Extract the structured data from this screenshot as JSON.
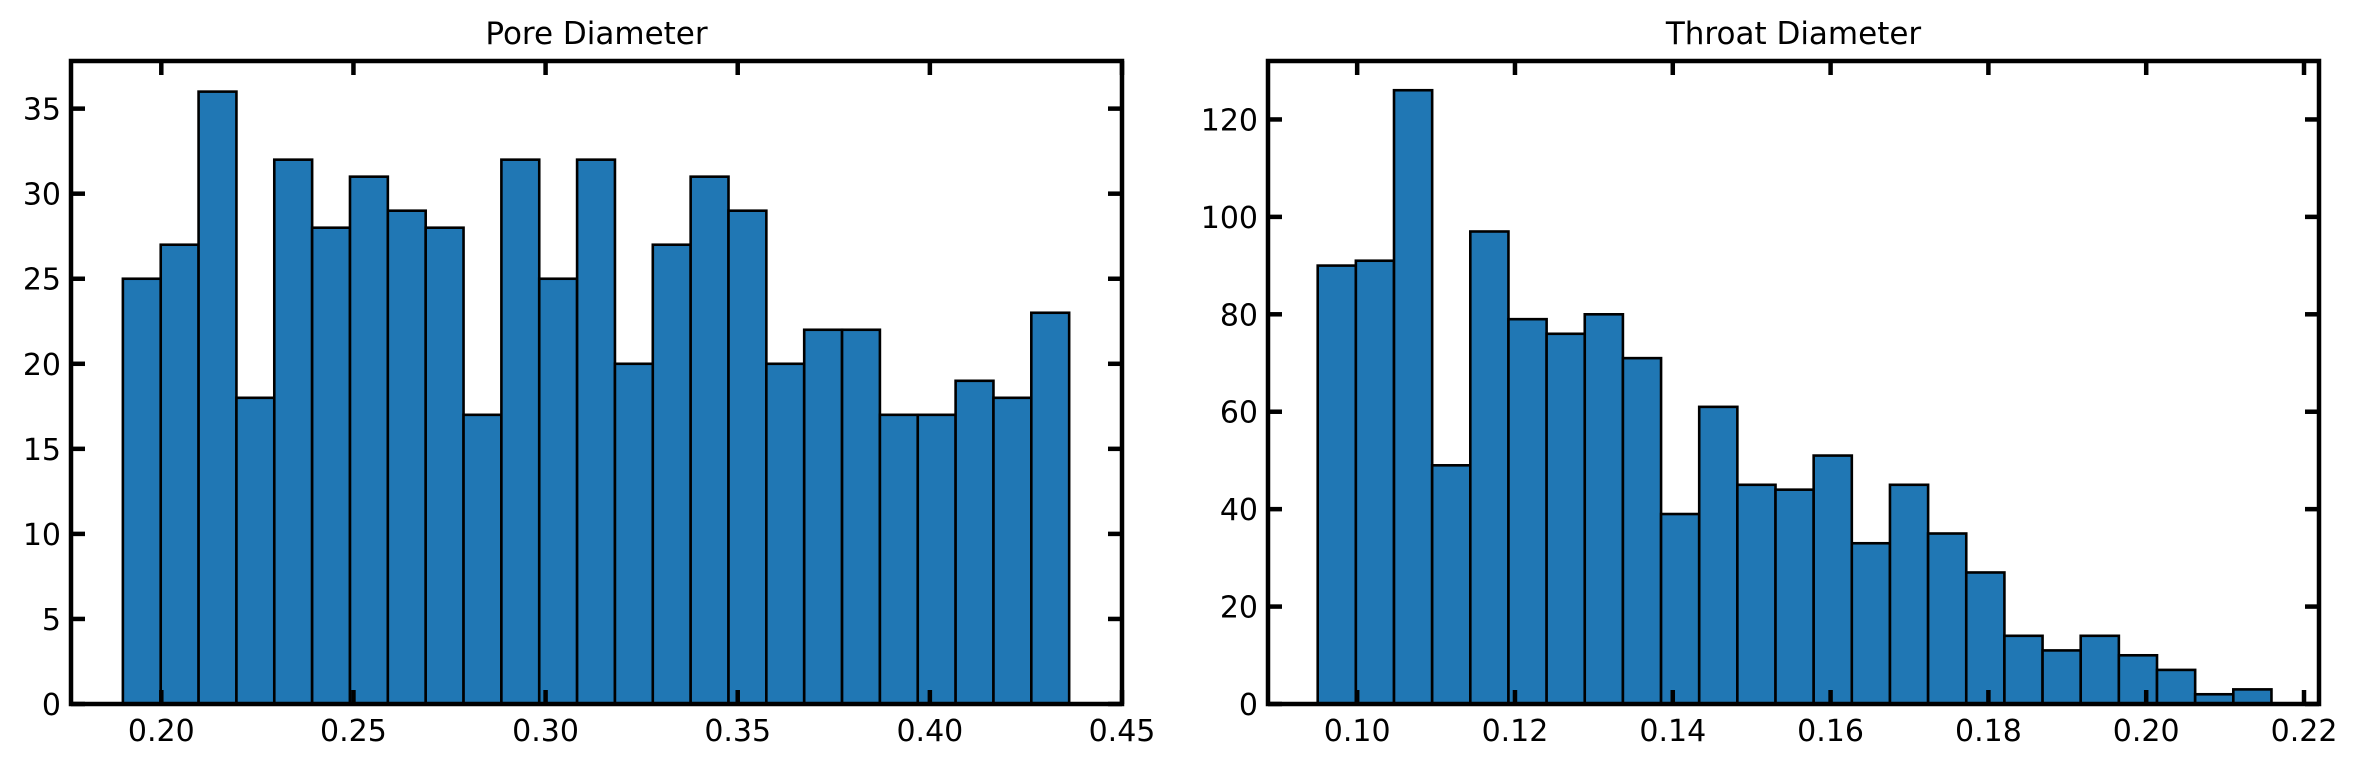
{
  "chart_data": [
    {
      "type": "bar",
      "title": "Pore Diameter",
      "xlabel": "",
      "ylabel": "",
      "xlim": [
        0.1765,
        0.45
      ],
      "ylim": [
        0,
        37.8
      ],
      "xticks": [
        0.2,
        0.25,
        0.3,
        0.35,
        0.4,
        0.45
      ],
      "yticks": [
        0,
        5,
        10,
        15,
        20,
        25,
        30,
        35
      ],
      "x_start": 0.19,
      "bin_width": 0.00985,
      "values": [
        25,
        27,
        36,
        18,
        32,
        28,
        31,
        29,
        28,
        17,
        32,
        25,
        32,
        20,
        27,
        31,
        29,
        20,
        22,
        22,
        17,
        17,
        19,
        18,
        23
      ],
      "grid": false,
      "color": "#2077b4",
      "edgecolor": "#000000"
    },
    {
      "type": "bar",
      "title": "Throat Diameter",
      "xlabel": "",
      "ylabel": "",
      "xlim": [
        0.0887,
        0.2219
      ],
      "ylim": [
        0,
        132
      ],
      "xticks": [
        0.1,
        0.12,
        0.14,
        0.16,
        0.18,
        0.2,
        0.22
      ],
      "yticks": [
        0,
        20,
        40,
        60,
        80,
        100,
        120
      ],
      "x_start": 0.095,
      "bin_width": 0.004835,
      "values": [
        90,
        91,
        126,
        49,
        97,
        79,
        76,
        80,
        71,
        39,
        61,
        45,
        44,
        51,
        33,
        45,
        35,
        27,
        14,
        11,
        14,
        10,
        7,
        2,
        3
      ],
      "grid": false,
      "color": "#2077b4",
      "edgecolor": "#000000"
    }
  ]
}
